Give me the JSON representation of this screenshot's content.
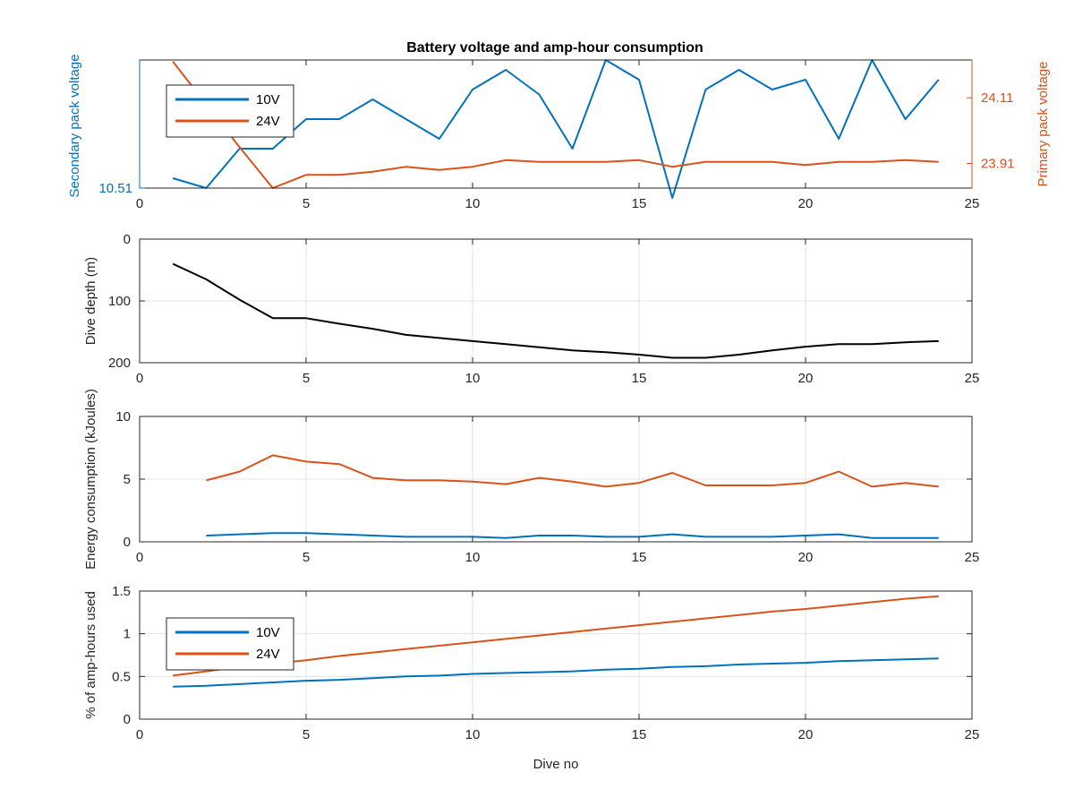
{
  "figure": {
    "title": "Battery voltage and amp-hour consumption"
  },
  "chart_data": [
    {
      "type": "line",
      "title": "Battery voltage and amp-hour consumption",
      "xlabel": "",
      "xlim": [
        0,
        25
      ],
      "xticks": [
        0,
        5,
        10,
        15,
        20,
        25
      ],
      "grid": false,
      "legend": "top-left",
      "left_axis": {
        "label": "Secondary pack voltage",
        "ticks": [
          10.51
        ],
        "ylim": [
          10.51,
          10.64
        ],
        "color": "#0072bd"
      },
      "right_axis": {
        "label": "Primary pack voltage",
        "ticks": [
          23.91,
          24.11
        ],
        "ylim": [
          23.835,
          24.225
        ],
        "color": "#d95319"
      },
      "series": [
        {
          "name": "10V",
          "axis": "left",
          "color": "#0072bd",
          "x": [
            1,
            2,
            3,
            4,
            5,
            6,
            7,
            8,
            9,
            10,
            11,
            12,
            13,
            14,
            15,
            16,
            17,
            18,
            19,
            20,
            21,
            22,
            23,
            24
          ],
          "values": [
            10.52,
            10.51,
            10.55,
            10.55,
            10.58,
            10.58,
            10.6,
            10.58,
            10.56,
            10.61,
            10.63,
            10.605,
            10.55,
            10.64,
            10.62,
            10.5,
            10.61,
            10.63,
            10.61,
            10.62,
            10.56,
            10.64,
            10.58,
            10.62
          ]
        },
        {
          "name": "24V",
          "axis": "right",
          "color": "#d95319",
          "x": [
            1,
            2,
            3,
            4,
            5,
            6,
            7,
            8,
            9,
            10,
            11,
            12,
            13,
            14,
            15,
            16,
            17,
            18,
            19,
            20,
            21,
            22,
            23,
            24
          ],
          "values": [
            24.22,
            24.09,
            23.96,
            23.835,
            23.875,
            23.875,
            23.885,
            23.9,
            23.89,
            23.9,
            23.92,
            23.915,
            23.915,
            23.915,
            23.92,
            23.9,
            23.915,
            23.915,
            23.915,
            23.905,
            23.915,
            23.915,
            23.92,
            23.915
          ]
        }
      ]
    },
    {
      "type": "line",
      "xlabel": "",
      "ylabel": "Dive depth (m)",
      "xlim": [
        0,
        25
      ],
      "ylim": [
        0,
        200
      ],
      "y_reversed": true,
      "xticks": [
        0,
        5,
        10,
        15,
        20,
        25
      ],
      "yticks": [
        0,
        100,
        200
      ],
      "grid": true,
      "series": [
        {
          "color": "#000000",
          "x": [
            1,
            2,
            3,
            4,
            5,
            6,
            7,
            8,
            9,
            10,
            11,
            12,
            13,
            14,
            15,
            16,
            17,
            18,
            19,
            20,
            21,
            22,
            23,
            24
          ],
          "values": [
            40,
            65,
            98,
            128,
            128,
            137,
            145,
            155,
            160,
            165,
            170,
            175,
            180,
            183,
            187,
            192,
            192,
            187,
            180,
            174,
            170,
            170,
            167,
            165
          ]
        }
      ]
    },
    {
      "type": "line",
      "xlabel": "",
      "ylabel": "Energy consumption (kJoules)",
      "xlim": [
        0,
        25
      ],
      "ylim": [
        0,
        10
      ],
      "xticks": [
        0,
        5,
        10,
        15,
        20,
        25
      ],
      "yticks": [
        0,
        5,
        10
      ],
      "grid": true,
      "series": [
        {
          "color": "#d95319",
          "x": [
            2,
            3,
            4,
            5,
            6,
            7,
            8,
            9,
            10,
            11,
            12,
            13,
            14,
            15,
            16,
            17,
            18,
            19,
            20,
            21,
            22,
            23,
            24
          ],
          "values": [
            4.9,
            5.6,
            6.9,
            6.4,
            6.2,
            5.1,
            4.9,
            4.9,
            4.8,
            4.6,
            5.1,
            4.8,
            4.4,
            4.7,
            5.5,
            4.5,
            4.5,
            4.5,
            4.7,
            5.6,
            4.4,
            4.7,
            4.4
          ]
        },
        {
          "color": "#0072bd",
          "x": [
            2,
            3,
            4,
            5,
            6,
            7,
            8,
            9,
            10,
            11,
            12,
            13,
            14,
            15,
            16,
            17,
            18,
            19,
            20,
            21,
            22,
            23,
            24
          ],
          "values": [
            0.5,
            0.6,
            0.7,
            0.7,
            0.6,
            0.5,
            0.4,
            0.4,
            0.4,
            0.3,
            0.5,
            0.5,
            0.4,
            0.4,
            0.6,
            0.4,
            0.4,
            0.4,
            0.5,
            0.6,
            0.3,
            0.3,
            0.3
          ]
        }
      ]
    },
    {
      "type": "line",
      "xlabel": "Dive no",
      "ylabel": "% of amp-hours used",
      "xlim": [
        0,
        25
      ],
      "ylim": [
        0,
        1.5
      ],
      "xticks": [
        0,
        5,
        10,
        15,
        20,
        25
      ],
      "yticks": [
        0,
        0.5,
        1,
        1.5
      ],
      "grid": true,
      "legend": "top-left",
      "series": [
        {
          "name": "10V",
          "color": "#0072bd",
          "x": [
            1,
            2,
            3,
            4,
            5,
            6,
            7,
            8,
            9,
            10,
            11,
            12,
            13,
            14,
            15,
            16,
            17,
            18,
            19,
            20,
            21,
            22,
            23,
            24
          ],
          "values": [
            0.38,
            0.39,
            0.41,
            0.43,
            0.45,
            0.46,
            0.48,
            0.5,
            0.51,
            0.53,
            0.54,
            0.55,
            0.56,
            0.58,
            0.59,
            0.61,
            0.62,
            0.64,
            0.65,
            0.66,
            0.68,
            0.69,
            0.7,
            0.71
          ]
        },
        {
          "name": "24V",
          "color": "#d95319",
          "x": [
            1,
            2,
            3,
            4,
            5,
            6,
            7,
            8,
            9,
            10,
            11,
            12,
            13,
            14,
            15,
            16,
            17,
            18,
            19,
            20,
            21,
            22,
            23,
            24
          ],
          "values": [
            0.51,
            0.56,
            0.61,
            0.65,
            0.69,
            0.74,
            0.78,
            0.82,
            0.86,
            0.9,
            0.94,
            0.98,
            1.02,
            1.06,
            1.1,
            1.14,
            1.18,
            1.22,
            1.26,
            1.29,
            1.33,
            1.37,
            1.41,
            1.44
          ]
        }
      ]
    }
  ]
}
